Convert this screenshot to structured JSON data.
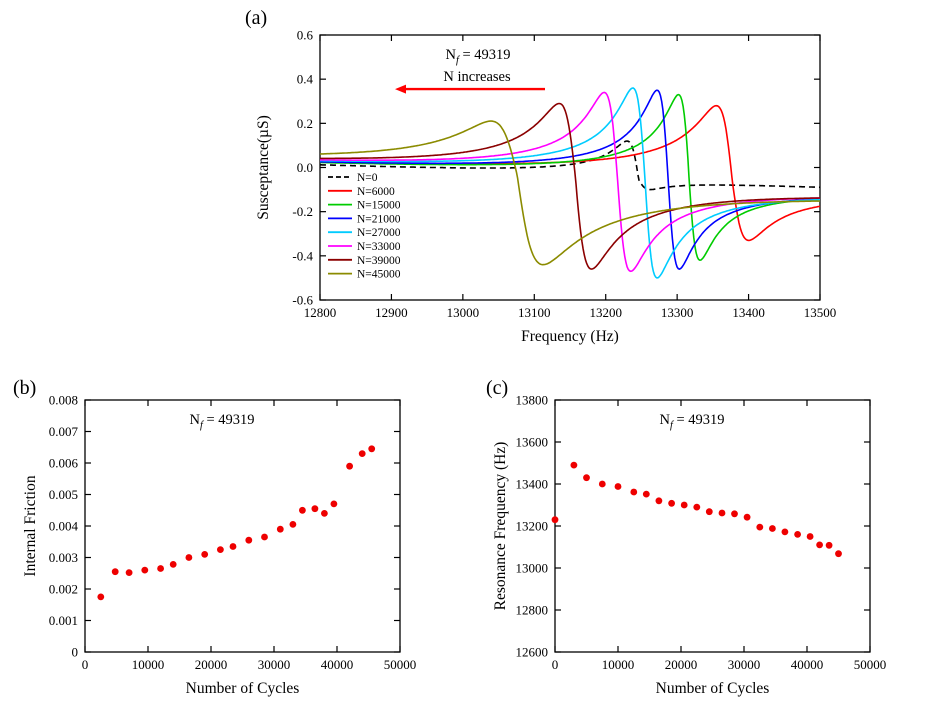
{
  "figure": {
    "background": "#ffffff",
    "accent_arrow_color": "#ff0000"
  },
  "chart_data": [
    {
      "id": "a",
      "type": "line",
      "panel_label": "(a)",
      "title": "",
      "xlabel": "Frequency (Hz)",
      "ylabel": "Susceptance(µS)",
      "xlim": [
        12800,
        13500
      ],
      "ylim": [
        -0.6,
        0.6
      ],
      "grid": false,
      "legend_position": "inside-bottom-left",
      "xtick_vals": [
        12800,
        12900,
        13000,
        13100,
        13200,
        13300,
        13400,
        13500
      ],
      "xtick_labels": [
        "12800",
        "12900",
        "13000",
        "13100",
        "13200",
        "13300",
        "13400",
        "13500"
      ],
      "ytick_vals": [
        -0.6,
        -0.4,
        -0.2,
        0,
        0.2,
        0.4,
        0.6
      ],
      "ytick_labels": [
        "-0.6",
        "-0.4",
        "-0.2",
        "0.0",
        "0.2",
        "0.4",
        "0.6"
      ],
      "ann_prefix": "N",
      "ann_sub": "f",
      "ann_rest": " = 49319",
      "ann_line2": "N increases",
      "arrow": {
        "x_tail": 13115,
        "x_head": 12905,
        "y": 0.355,
        "color": "#ff0000"
      },
      "baseline_slope": -0.00012,
      "series": [
        {
          "name": "N=0",
          "color": "#000000",
          "dashed": true,
          "f_peak": 13230,
          "b_peak": 0.12,
          "f_dip": 13262,
          "b_dip": -0.1
        },
        {
          "name": "N=6000",
          "color": "#ff0000",
          "dashed": false,
          "f_peak": 13355,
          "b_peak": 0.28,
          "f_dip": 13400,
          "b_dip": -0.33
        },
        {
          "name": "N=15000",
          "color": "#00cc00",
          "dashed": false,
          "f_peak": 13302,
          "b_peak": 0.33,
          "f_dip": 13332,
          "b_dip": -0.42
        },
        {
          "name": "N=21000",
          "color": "#0000ff",
          "dashed": false,
          "f_peak": 13272,
          "b_peak": 0.35,
          "f_dip": 13303,
          "b_dip": -0.46
        },
        {
          "name": "N=27000",
          "color": "#00ccff",
          "dashed": false,
          "f_peak": 13238,
          "b_peak": 0.36,
          "f_dip": 13272,
          "b_dip": -0.5
        },
        {
          "name": "N=33000",
          "color": "#ff00ff",
          "dashed": false,
          "f_peak": 13198,
          "b_peak": 0.34,
          "f_dip": 13235,
          "b_dip": -0.47
        },
        {
          "name": "N=39000",
          "color": "#8b0000",
          "dashed": false,
          "f_peak": 13135,
          "b_peak": 0.29,
          "f_dip": 13180,
          "b_dip": -0.46
        },
        {
          "name": "N=45000",
          "color": "#8b8b00",
          "dashed": false,
          "f_peak": 13040,
          "b_peak": 0.21,
          "f_dip": 13112,
          "b_dip": -0.44
        }
      ]
    },
    {
      "id": "b",
      "type": "scatter",
      "panel_label": "(b)",
      "title": "",
      "xlabel": "Number of Cycles",
      "ylabel": "Internal Friction",
      "xlim": [
        0,
        50000
      ],
      "ylim": [
        0,
        0.008
      ],
      "grid": false,
      "xtick_vals": [
        0,
        10000,
        20000,
        30000,
        40000,
        50000
      ],
      "xtick_labels": [
        "0",
        "10000",
        "20000",
        "30000",
        "40000",
        "50000"
      ],
      "ytick_vals": [
        0,
        0.001,
        0.002,
        0.003,
        0.004,
        0.005,
        0.006,
        0.007,
        0.008
      ],
      "ytick_labels": [
        "0",
        "0.001",
        "0.002",
        "0.003",
        "0.004",
        "0.005",
        "0.006",
        "0.007",
        "0.008"
      ],
      "ann_prefix": "N",
      "ann_sub": "f",
      "ann_rest": " = 49319",
      "marker_color": "#ee0000",
      "x": [
        2500,
        4800,
        7000,
        9500,
        12000,
        14000,
        16500,
        19000,
        21500,
        23500,
        26000,
        28500,
        31000,
        33000,
        34500,
        36500,
        38000,
        39500,
        42000,
        44000,
        45500
      ],
      "y": [
        0.00175,
        0.00255,
        0.00252,
        0.0026,
        0.00265,
        0.00278,
        0.003,
        0.0031,
        0.00325,
        0.00335,
        0.00355,
        0.00365,
        0.0039,
        0.00405,
        0.0045,
        0.00455,
        0.0044,
        0.0047,
        0.0059,
        0.0063,
        0.00645
      ]
    },
    {
      "id": "c",
      "type": "scatter",
      "panel_label": "(c)",
      "title": "",
      "xlabel": "Number of Cycles",
      "ylabel": "Resonance Frequency (Hz)",
      "xlim": [
        0,
        50000
      ],
      "ylim": [
        12600,
        13800
      ],
      "grid": false,
      "xtick_vals": [
        0,
        10000,
        20000,
        30000,
        40000,
        50000
      ],
      "xtick_labels": [
        "0",
        "10000",
        "20000",
        "30000",
        "40000",
        "50000"
      ],
      "ytick_vals": [
        12600,
        12800,
        13000,
        13200,
        13400,
        13600,
        13800
      ],
      "ytick_labels": [
        "12600",
        "12800",
        "13000",
        "13200",
        "13400",
        "13600",
        "13800"
      ],
      "ann_prefix": "N",
      "ann_sub": "f",
      "ann_rest": " = 49319",
      "marker_color": "#ee0000",
      "x": [
        0,
        3000,
        5000,
        7500,
        10000,
        12500,
        14500,
        16500,
        18500,
        20500,
        22500,
        24500,
        26500,
        28500,
        30500,
        32500,
        34500,
        36500,
        38500,
        40500,
        42000,
        43500,
        45000
      ],
      "y": [
        13230,
        13490,
        13430,
        13400,
        13388,
        13362,
        13352,
        13320,
        13308,
        13300,
        13290,
        13268,
        13262,
        13258,
        13242,
        13195,
        13188,
        13172,
        13160,
        13150,
        13110,
        13108,
        13068
      ]
    }
  ]
}
